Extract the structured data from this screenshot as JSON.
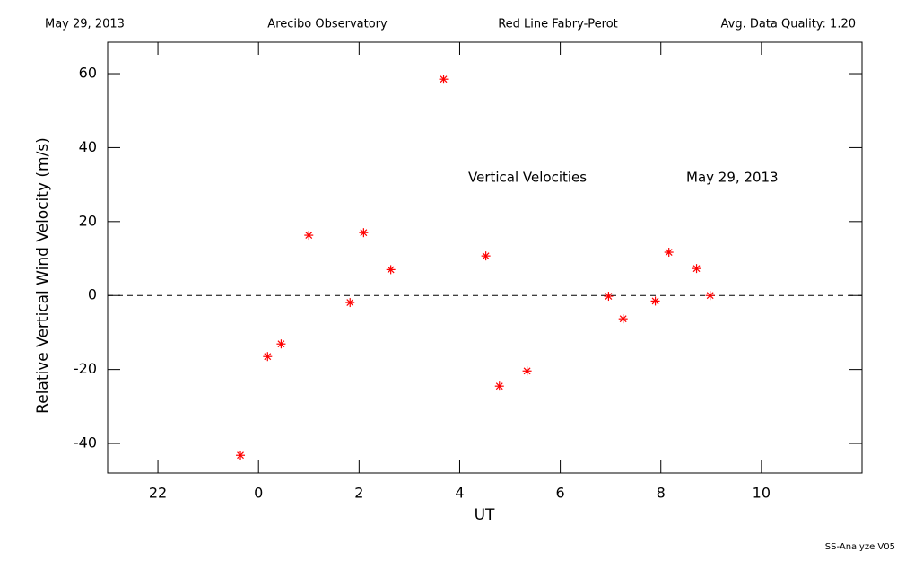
{
  "chart_data": {
    "type": "scatter",
    "header": [
      "May 29, 2013",
      "Arecibo Observatory",
      "Red Line Fabry-Perot",
      "Avg. Data Quality: 1.20"
    ],
    "annotations": [
      "Vertical Velocities",
      "May 29, 2013"
    ],
    "footer": "SS-Analyze V05",
    "x_label": "UT",
    "y_label": "Relative Vertical Wind Velocity (m/s)",
    "x": [
      -0.36,
      0.18,
      0.45,
      1.0,
      1.82,
      2.09,
      2.63,
      3.68,
      4.52,
      4.79,
      5.34,
      6.96,
      7.25,
      7.89,
      8.16,
      8.71,
      8.98
    ],
    "values": [
      -43.2,
      -16.5,
      -13.1,
      16.3,
      -1.9,
      17.0,
      7.0,
      58.5,
      10.7,
      -24.5,
      -20.4,
      -0.2,
      -6.3,
      -1.5,
      11.7,
      7.3,
      0.0
    ],
    "color": "#ff0000",
    "xlim": [
      -3,
      12
    ],
    "xticks": [
      {
        "value": -2,
        "label": "22"
      },
      0,
      2,
      4,
      6,
      8,
      10
    ],
    "ylim": [
      -48,
      68.5
    ],
    "yticks": [
      -40,
      -20,
      0,
      20,
      40,
      60
    ],
    "hline": 0,
    "grid": false
  }
}
